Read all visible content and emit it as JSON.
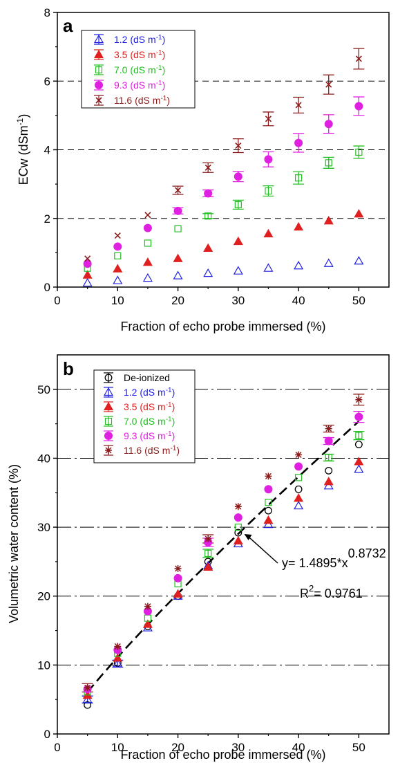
{
  "chart_data": [
    {
      "panel_label": "a",
      "type": "scatter",
      "title": "",
      "xlabel": "Fraction of echo probe immersed (%)",
      "ylabel": "ECw (dSm",
      "ylabel_sup": "-1",
      "ylabel_close": ")",
      "xlim": [
        0,
        55
      ],
      "ylim": [
        0,
        8
      ],
      "xticks": [
        0,
        10,
        20,
        30,
        40,
        50
      ],
      "yticks": [
        0,
        2,
        4,
        6,
        8
      ],
      "grid": "horizontal dashed",
      "legend_position": "top-left",
      "x": [
        5,
        10,
        15,
        20,
        25,
        30,
        35,
        40,
        45,
        50
      ],
      "series": [
        {
          "name": "1.2 (dS m",
          "sup": "-1",
          "close": ")",
          "color": "#2020e0",
          "marker": "triangle-open",
          "values": [
            0.12,
            0.19,
            0.26,
            0.33,
            0.4,
            0.47,
            0.55,
            0.62,
            0.69,
            0.76
          ],
          "errors": [
            0,
            0,
            0,
            0,
            0,
            0,
            0,
            0,
            0,
            0
          ]
        },
        {
          "name": "3.5 (dS m",
          "sup": "-1",
          "close": ")",
          "color": "#e02020",
          "marker": "triangle-filled",
          "values": [
            0.35,
            0.53,
            0.72,
            0.83,
            1.13,
            1.33,
            1.55,
            1.75,
            1.93,
            2.13
          ],
          "errors": [
            0,
            0,
            0,
            0,
            0,
            0,
            0,
            0,
            0,
            0
          ]
        },
        {
          "name": "7.0 (dS m",
          "sup": "-1",
          "close": ")",
          "color": "#20c020",
          "marker": "square-open",
          "values": [
            0.55,
            0.91,
            1.28,
            1.7,
            2.07,
            2.4,
            2.8,
            3.18,
            3.62,
            3.93
          ],
          "errors": [
            0,
            0,
            0,
            0,
            0.07,
            0.13,
            0.15,
            0.18,
            0.16,
            0.18
          ]
        },
        {
          "name": "9.3 (dS m",
          "sup": "-1",
          "close": ")",
          "color": "#e020e0",
          "marker": "circle-filled",
          "values": [
            0.68,
            1.18,
            1.72,
            2.22,
            2.73,
            3.22,
            3.72,
            4.2,
            4.75,
            5.27
          ],
          "errors": [
            0,
            0,
            0,
            0.09,
            0.1,
            0.15,
            0.22,
            0.27,
            0.27,
            0.27
          ]
        },
        {
          "name": "11.6 (dS m",
          "sup": "-1",
          "close": ")",
          "color": "#8b1a1a",
          "marker": "x",
          "values": [
            0.83,
            1.5,
            2.1,
            2.82,
            3.48,
            4.12,
            4.9,
            5.3,
            5.9,
            6.65
          ],
          "errors": [
            0,
            0,
            0,
            0.12,
            0.14,
            0.2,
            0.2,
            0.23,
            0.28,
            0.3
          ]
        }
      ]
    },
    {
      "panel_label": "b",
      "type": "scatter",
      "title": "",
      "xlabel": "Fraction of echo probe immersed (%)",
      "ylabel": "Volumetric water content (%)",
      "xlim": [
        0,
        55
      ],
      "ylim": [
        0,
        55
      ],
      "xticks": [
        0,
        10,
        20,
        30,
        40,
        50
      ],
      "yticks": [
        0,
        10,
        20,
        30,
        40,
        50
      ],
      "grid": "horizontal dash-dot",
      "legend_position": "top-left",
      "x": [
        5,
        10,
        15,
        20,
        25,
        30,
        35,
        40,
        45,
        50
      ],
      "series": [
        {
          "name": "De-ionized",
          "sup": "",
          "close": "",
          "color": "#000000",
          "marker": "circle-open",
          "values": [
            4.2,
            10.3,
            15.6,
            20.0,
            25.0,
            29.2,
            32.4,
            35.5,
            38.2,
            42.0
          ],
          "errors": [
            0,
            0,
            0,
            0,
            0,
            0,
            0,
            0,
            0,
            0
          ]
        },
        {
          "name": "1.2 (dS m",
          "sup": "-1",
          "close": ")",
          "color": "#2020e0",
          "marker": "triangle-open",
          "values": [
            5.0,
            10.2,
            15.4,
            20.0,
            24.4,
            27.6,
            30.4,
            33.1,
            36.0,
            38.4
          ],
          "errors": [
            0.5,
            0.5,
            0,
            0,
            0,
            0,
            0,
            0,
            0,
            0
          ]
        },
        {
          "name": "3.5 (dS m",
          "sup": "-1",
          "close": ")",
          "color": "#e02020",
          "marker": "triangle-filled",
          "values": [
            5.6,
            11.0,
            15.9,
            20.3,
            24.2,
            28.0,
            31.0,
            34.2,
            36.6,
            39.5
          ],
          "errors": [
            0,
            0,
            0,
            0,
            0,
            0,
            0,
            0,
            0,
            0
          ]
        },
        {
          "name": "7.0 (dS m",
          "sup": "-1",
          "close": ")",
          "color": "#20c020",
          "marker": "square-open",
          "values": [
            6.1,
            11.7,
            16.8,
            21.8,
            26.2,
            30.0,
            33.6,
            37.2,
            40.1,
            43.3
          ],
          "errors": [
            0,
            0,
            0,
            0,
            0.6,
            0,
            0,
            0,
            0.5,
            0.6
          ]
        },
        {
          "name": "9.3 (dS m",
          "sup": "-1",
          "close": ")",
          "color": "#e020e0",
          "marker": "circle-filled",
          "values": [
            6.5,
            12.2,
            17.8,
            22.6,
            27.8,
            31.4,
            35.5,
            38.8,
            42.5,
            46.0
          ],
          "errors": [
            0,
            0,
            0,
            0,
            0.6,
            0,
            0,
            0,
            0.5,
            0.8
          ]
        },
        {
          "name": "11.6 (dS m",
          "sup": "-1",
          "close": ")",
          "color": "#8b1a1a",
          "marker": "asterisk",
          "values": [
            6.7,
            12.7,
            18.5,
            24.0,
            28.3,
            33.0,
            37.4,
            40.5,
            44.3,
            48.5
          ],
          "errors": [
            0.6,
            0,
            0,
            0,
            0.6,
            0,
            0,
            0,
            0.5,
            0.8
          ]
        }
      ],
      "fit": {
        "a": 1.4895,
        "b": 0.8732,
        "x_range": [
          5,
          50
        ],
        "color": "#000000"
      },
      "annotation_eq": {
        "prefix": "y= 1.4895*x",
        "sup": "0.8732",
        "at": [
          31,
          29
        ]
      },
      "annotation_r2": {
        "prefix": "R",
        "sup": "2",
        "suffix": "= 0.9761"
      }
    }
  ]
}
